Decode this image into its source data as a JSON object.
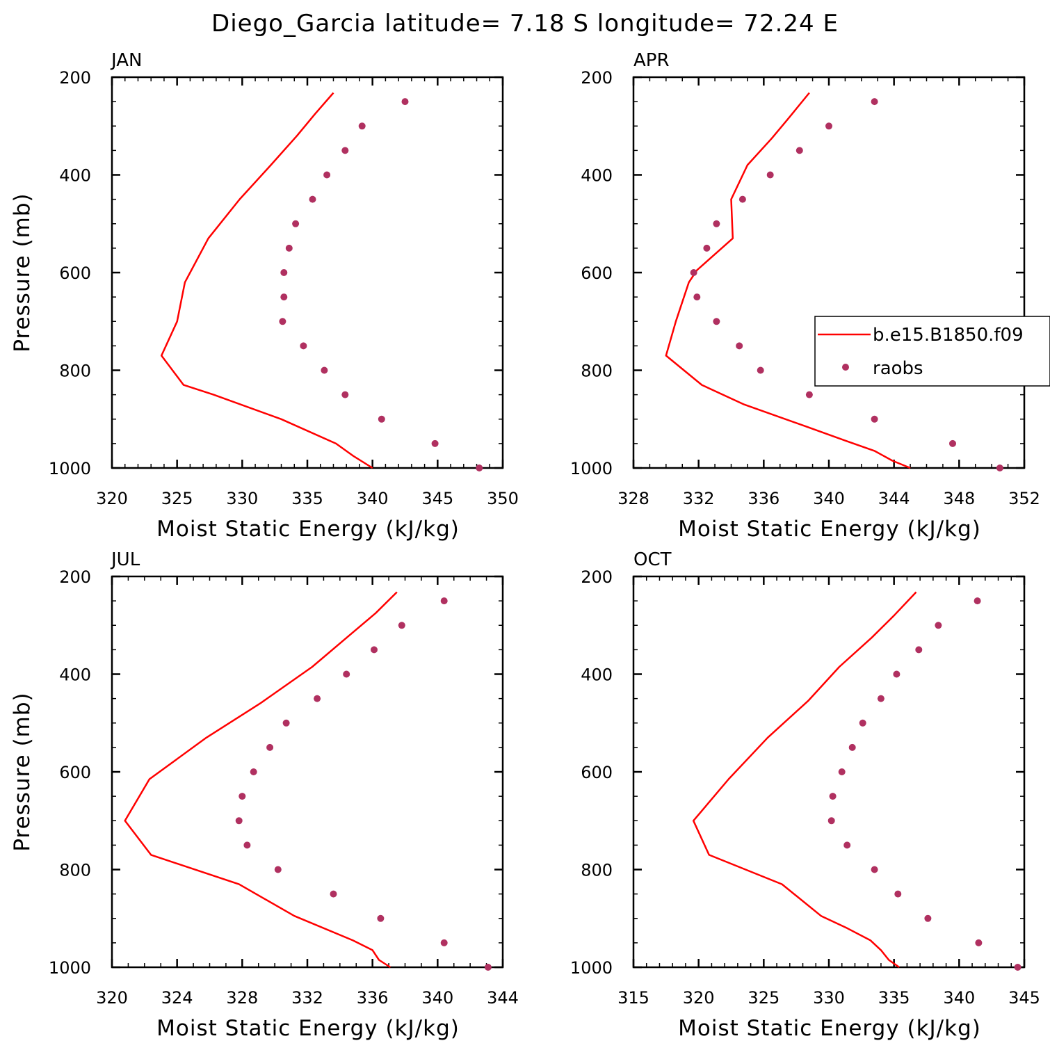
{
  "figure": {
    "title": "Diego_Garcia  latitude= 7.18 S longitude= 72.24 E"
  },
  "colors": {
    "model_line": "#ff0000",
    "raobs_marker": "#b03060",
    "axes": "#000000"
  },
  "legend": {
    "entries": [
      {
        "label": "b.e15.B1850.f09",
        "symbol": "line"
      },
      {
        "label": "raobs",
        "symbol": "dot"
      }
    ],
    "panel": "APR"
  },
  "chart_data": [
    {
      "type": "line",
      "panel_label": "JAN",
      "xlabel": "Moist Static Energy (kJ/kg)",
      "ylabel": "Pressure (mb)",
      "xlim": [
        320,
        350
      ],
      "ylim": [
        1000,
        200
      ],
      "y_inverted": true,
      "xticks": [
        320,
        325,
        330,
        335,
        340,
        345,
        350
      ],
      "yticks": [
        200,
        400,
        600,
        800,
        1000
      ],
      "x_minor_step": 1,
      "y_minor_step": 50,
      "series": [
        {
          "name": "b.e15.B1850.f09",
          "kind": "line",
          "pressure": [
            1000,
            975,
            950,
            900,
            850,
            830,
            770,
            700,
            620,
            530,
            450,
            380,
            320,
            275,
            232
          ],
          "values": [
            340.0,
            338.5,
            337.2,
            333.0,
            327.8,
            325.5,
            323.8,
            325.0,
            325.6,
            327.4,
            329.8,
            332.2,
            334.2,
            335.6,
            337.0
          ]
        },
        {
          "name": "raobs",
          "kind": "markers",
          "pressure": [
            1000,
            950,
            900,
            850,
            800,
            750,
            700,
            650,
            600,
            550,
            500,
            450,
            400,
            350,
            300,
            250
          ],
          "values": [
            348.2,
            344.8,
            340.7,
            337.9,
            336.3,
            334.7,
            333.1,
            333.2,
            333.2,
            333.6,
            334.1,
            335.4,
            336.5,
            337.9,
            339.2,
            342.5
          ]
        }
      ]
    },
    {
      "type": "line",
      "panel_label": "APR",
      "xlabel": "Moist Static Energy (kJ/kg)",
      "ylabel": "",
      "xlim": [
        328,
        352
      ],
      "ylim": [
        1000,
        200
      ],
      "y_inverted": true,
      "xticks": [
        328,
        332,
        336,
        340,
        344,
        348,
        352
      ],
      "yticks": [
        200,
        400,
        600,
        800,
        1000
      ],
      "x_minor_step": 1,
      "y_minor_step": 50,
      "series": [
        {
          "name": "b.e15.B1850.f09",
          "kind": "line",
          "pressure": [
            1000,
            985,
            965,
            945,
            915,
            870,
            830,
            770,
            700,
            620,
            595,
            530,
            450,
            380,
            325,
            285,
            232
          ],
          "values": [
            345.0,
            343.9,
            342.8,
            341.1,
            338.6,
            334.8,
            332.2,
            330.0,
            330.6,
            331.4,
            331.9,
            334.1,
            334.0,
            335.0,
            336.5,
            337.5,
            338.8
          ]
        },
        {
          "name": "raobs",
          "kind": "markers",
          "pressure": [
            1000,
            950,
            900,
            850,
            800,
            750,
            700,
            650,
            600,
            550,
            500,
            450,
            400,
            350,
            300,
            250
          ],
          "values": [
            350.5,
            347.6,
            342.8,
            338.8,
            335.8,
            334.5,
            333.1,
            331.9,
            331.7,
            332.5,
            333.1,
            334.7,
            336.4,
            338.2,
            340.0,
            342.8
          ]
        }
      ]
    },
    {
      "type": "line",
      "panel_label": "JUL",
      "xlabel": "Moist Static Energy (kJ/kg)",
      "ylabel": "Pressure (mb)",
      "xlim": [
        320,
        344
      ],
      "ylim": [
        1000,
        200
      ],
      "y_inverted": true,
      "xticks": [
        320,
        324,
        328,
        332,
        336,
        340,
        344
      ],
      "yticks": [
        200,
        400,
        600,
        800,
        1000
      ],
      "x_minor_step": 1,
      "y_minor_step": 50,
      "series": [
        {
          "name": "b.e15.B1850.f09",
          "kind": "line",
          "pressure": [
            1000,
            985,
            965,
            945,
            895,
            830,
            770,
            700,
            615,
            530,
            460,
            385,
            320,
            275,
            232
          ],
          "values": [
            337.1,
            336.4,
            336.0,
            334.8,
            331.2,
            327.8,
            322.4,
            320.8,
            322.3,
            325.8,
            329.1,
            332.3,
            334.6,
            336.2,
            337.5
          ]
        },
        {
          "name": "raobs",
          "kind": "markers",
          "pressure": [
            1000,
            950,
            900,
            850,
            800,
            750,
            700,
            650,
            600,
            550,
            500,
            450,
            400,
            350,
            300,
            250
          ],
          "values": [
            343.1,
            340.4,
            336.5,
            333.6,
            330.2,
            328.3,
            327.8,
            328.0,
            328.7,
            329.7,
            330.7,
            332.6,
            334.4,
            336.1,
            337.8,
            340.4
          ]
        }
      ]
    },
    {
      "type": "line",
      "panel_label": "OCT",
      "xlabel": "Moist Static Energy (kJ/kg)",
      "ylabel": "",
      "xlim": [
        315,
        345
      ],
      "ylim": [
        1000,
        200
      ],
      "y_inverted": true,
      "xticks": [
        315,
        320,
        325,
        330,
        335,
        340,
        345
      ],
      "yticks": [
        200,
        400,
        600,
        800,
        1000
      ],
      "x_minor_step": 1,
      "y_minor_step": 50,
      "series": [
        {
          "name": "b.e15.B1850.f09",
          "kind": "line",
          "pressure": [
            1000,
            985,
            965,
            945,
            920,
            895,
            830,
            770,
            700,
            615,
            530,
            455,
            385,
            325,
            280,
            232
          ],
          "values": [
            335.4,
            334.6,
            334.0,
            333.2,
            331.4,
            329.4,
            326.4,
            320.8,
            319.6,
            322.3,
            325.3,
            328.4,
            330.8,
            333.3,
            335.0,
            336.7
          ]
        },
        {
          "name": "raobs",
          "kind": "markers",
          "pressure": [
            1000,
            950,
            900,
            850,
            800,
            750,
            700,
            650,
            600,
            550,
            500,
            450,
            400,
            350,
            300,
            250
          ],
          "values": [
            344.5,
            341.5,
            337.6,
            335.3,
            333.5,
            331.4,
            330.2,
            330.3,
            331.0,
            331.8,
            332.6,
            334.0,
            335.2,
            336.9,
            338.4,
            341.4
          ]
        }
      ]
    }
  ]
}
